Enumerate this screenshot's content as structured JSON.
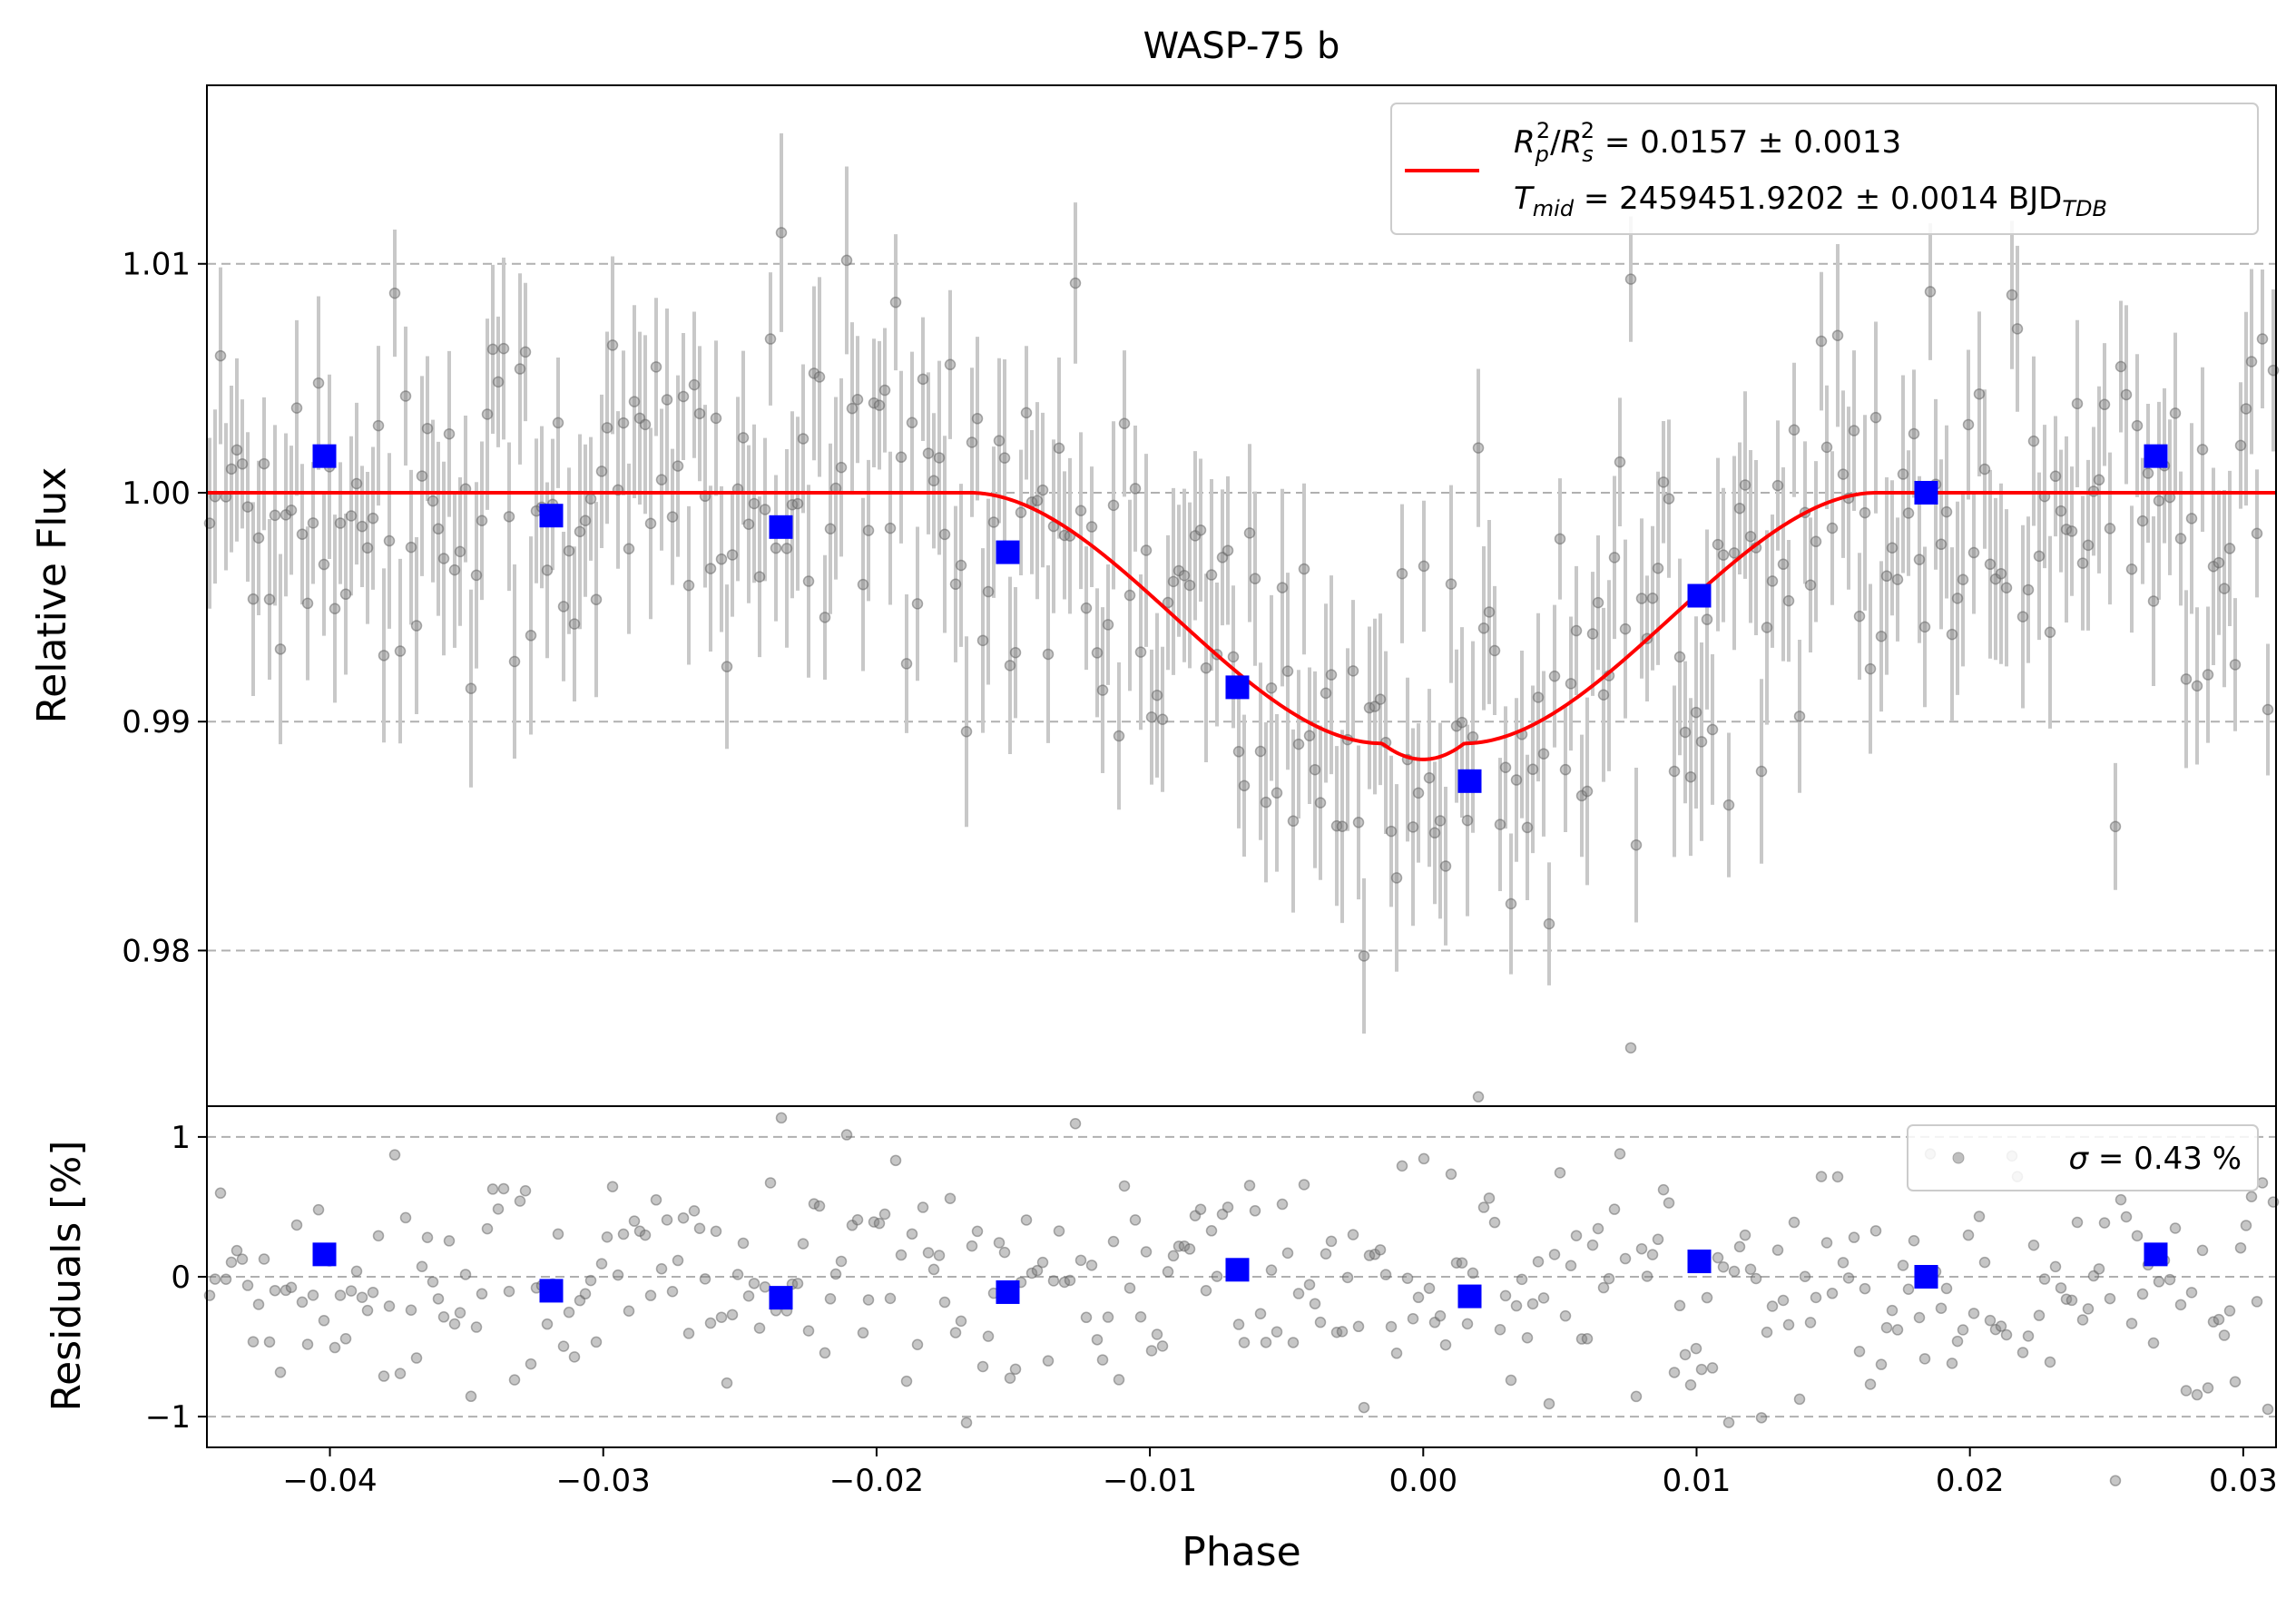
{
  "chart_data": [
    {
      "panel": "main",
      "type": "scatter",
      "title": "WASP-75 b",
      "ylabel": "Relative Flux",
      "xlim": [
        -0.0445,
        0.0312
      ],
      "ylim": [
        0.9732,
        1.0178
      ],
      "yticks": [
        0.98,
        0.99,
        1.0,
        1.01
      ],
      "ytick_labels": [
        "0.98",
        "0.99",
        "1.00",
        "1.01"
      ],
      "grid": "horizontal dashed",
      "legend": {
        "placement": "top-right",
        "line_label": {
          "sym1": "R",
          "sub1": "p",
          "sup1": "2",
          "sym2": "R",
          "sub2": "s",
          "sup2": "2",
          "rest": " = 0.0157 ± 0.0013"
        },
        "line_label2": {
          "sym": "T",
          "sub": "mid",
          "rest": " = 2459451.9202 ± 0.0014 BJD",
          "unit_sub": "TDB"
        }
      },
      "model": {
        "name": "transit model",
        "color": "#ff0000",
        "baseline": 1.0,
        "min_flux": 0.98835,
        "t_first_contact": -0.0166,
        "t_second_contact": -0.0015,
        "t_third_contact": 0.0045,
        "t_fourth_contact": 0.0162,
        "center": 0.0
      },
      "raw_points": {
        "color": "#808080",
        "errorbar_color": "#c8c8c8",
        "count": 380,
        "typical_error": 0.0035,
        "scatter": 0.0043
      },
      "binned": {
        "color": "#0000ff",
        "x": [
          -0.0402,
          -0.0319,
          -0.0235,
          -0.0152,
          -0.0068,
          0.0017,
          0.0101,
          0.0184,
          0.0268
        ],
        "y": [
          1.0016,
          0.999,
          0.9985,
          0.9974,
          0.9915,
          0.9874,
          0.9955,
          1.0,
          1.0016
        ]
      }
    },
    {
      "panel": "residuals",
      "type": "scatter",
      "xlabel": "Phase",
      "ylabel": "Residuals [%]",
      "xlim": [
        -0.0445,
        0.0312
      ],
      "ylim": [
        -1.22,
        1.22
      ],
      "xticks": [
        -0.04,
        -0.03,
        -0.02,
        -0.01,
        0.0,
        0.01,
        0.02,
        0.03
      ],
      "xtick_labels": [
        "−0.04",
        "−0.03",
        "−0.02",
        "−0.01",
        "0.00",
        "0.01",
        "0.02",
        "0.03"
      ],
      "yticks": [
        -1,
        0,
        1
      ],
      "ytick_labels": [
        "−1",
        "0",
        "1"
      ],
      "grid": "horizontal dashed",
      "legend": {
        "placement": "top-right",
        "sigma_symbol": "σ",
        "label": " = 0.43 %"
      },
      "binned": {
        "color": "#0000ff",
        "x": [
          -0.0402,
          -0.0319,
          -0.0235,
          -0.0152,
          -0.0068,
          0.0017,
          0.0101,
          0.0184,
          0.0268
        ],
        "y": [
          0.16,
          -0.1,
          -0.15,
          -0.11,
          0.05,
          -0.14,
          0.11,
          0.0,
          0.16
        ]
      }
    }
  ]
}
